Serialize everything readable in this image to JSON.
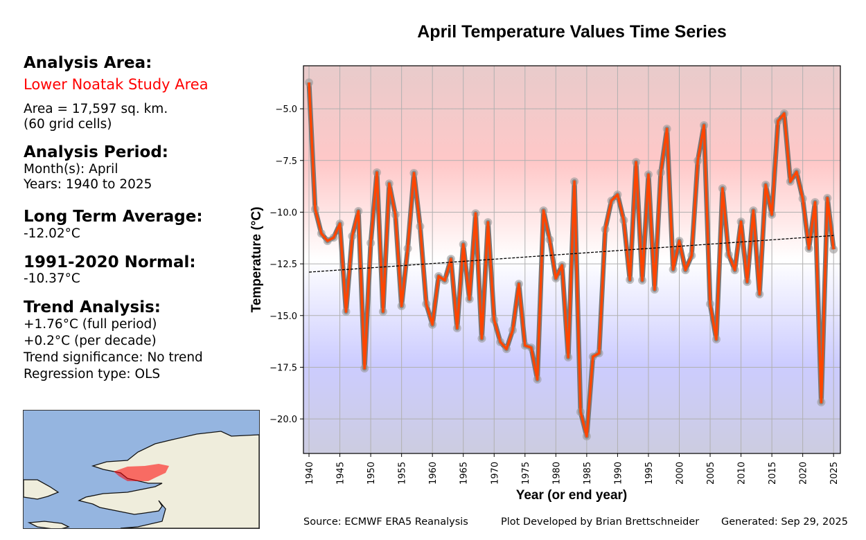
{
  "left_panel": {
    "area_heading": "Analysis Area:",
    "area_name": "Lower Noatak Study Area",
    "area_size": "Area = 17,597 sq. km.",
    "grid_cells": "(60 grid cells)",
    "period_heading": "Analysis Period:",
    "months": "Month(s): April",
    "years": "Years: 1940 to 2025",
    "lta_heading": "Long Term Average:",
    "lta_value": "-12.02°C",
    "normal_heading": "1991-2020 Normal:",
    "normal_value": "-10.37°C",
    "trend_heading": "Trend Analysis:",
    "trend_full": "+1.76°C (full period)",
    "trend_decade": "+0.2°C (per decade)",
    "trend_significance": "Trend significance: No trend",
    "regression": "Regression type: OLS"
  },
  "footer": {
    "source": "Source: ECMWF ERA5 Reanalysis",
    "developer": "Plot Developed by Brian Brettschneider",
    "generated": "Generated: Sep 29, 2025"
  },
  "colors": {
    "line": "#ff4500",
    "line_shadow": "#777777",
    "marker": "#999999",
    "area_highlight": "#ff0000"
  },
  "chart_data": {
    "type": "line",
    "title": "April Temperature Values Time Series",
    "xlabel": "Year (or end year)",
    "ylabel": "Temperature (°C)",
    "xlim": [
      1939.1,
      2026.1
    ],
    "ylim": [
      -21.67,
      -2.92
    ],
    "grid": true,
    "xticks": [
      1940,
      1945,
      1950,
      1955,
      1960,
      1965,
      1970,
      1975,
      1980,
      1985,
      1990,
      1995,
      2000,
      2005,
      2010,
      2015,
      2020,
      2025
    ],
    "yticks": [
      -5.0,
      -7.5,
      -10.0,
      -12.5,
      -15.0,
      -17.5,
      -20.0
    ],
    "ytick_labels": [
      "−5.0",
      "−7.5",
      "−10.0",
      "−12.5",
      "−15.0",
      "−17.5",
      "−20.0"
    ],
    "x_start": 1940,
    "values": [
      -3.73,
      -9.85,
      -11.03,
      -11.39,
      -11.23,
      -10.56,
      -14.81,
      -11.16,
      -9.95,
      -17.55,
      -11.49,
      -8.08,
      -14.81,
      -8.62,
      -10.12,
      -14.54,
      -11.76,
      -8.11,
      -10.69,
      -14.44,
      -15.44,
      -13.1,
      -13.3,
      -12.26,
      -15.61,
      -11.56,
      -14.21,
      -10.06,
      -16.11,
      -10.49,
      -15.21,
      -16.28,
      -16.62,
      -15.71,
      -13.47,
      -16.45,
      -16.55,
      -18.09,
      -9.92,
      -11.33,
      -13.2,
      -12.57,
      -17.02,
      -8.52,
      -19.66,
      -20.84,
      -16.99,
      -16.82,
      -10.83,
      -9.45,
      -9.15,
      -10.39,
      -13.27,
      -7.58,
      -13.3,
      -8.18,
      -13.74,
      -8.08,
      -5.97,
      -12.77,
      -11.39,
      -12.8,
      -12.1,
      -7.51,
      -5.8,
      -14.44,
      -16.15,
      -8.85,
      -12.06,
      -12.8,
      -10.46,
      -13.37,
      -9.92,
      -13.97,
      -8.68,
      -10.12,
      -5.6,
      -5.23,
      -8.52,
      -8.05,
      -9.35,
      -11.76,
      -9.52,
      -19.19,
      -9.32,
      -11.8
    ],
    "trend": {
      "x": [
        1940,
        2025
      ],
      "y": [
        -12.9,
        -11.13
      ],
      "style": "dashed"
    }
  }
}
